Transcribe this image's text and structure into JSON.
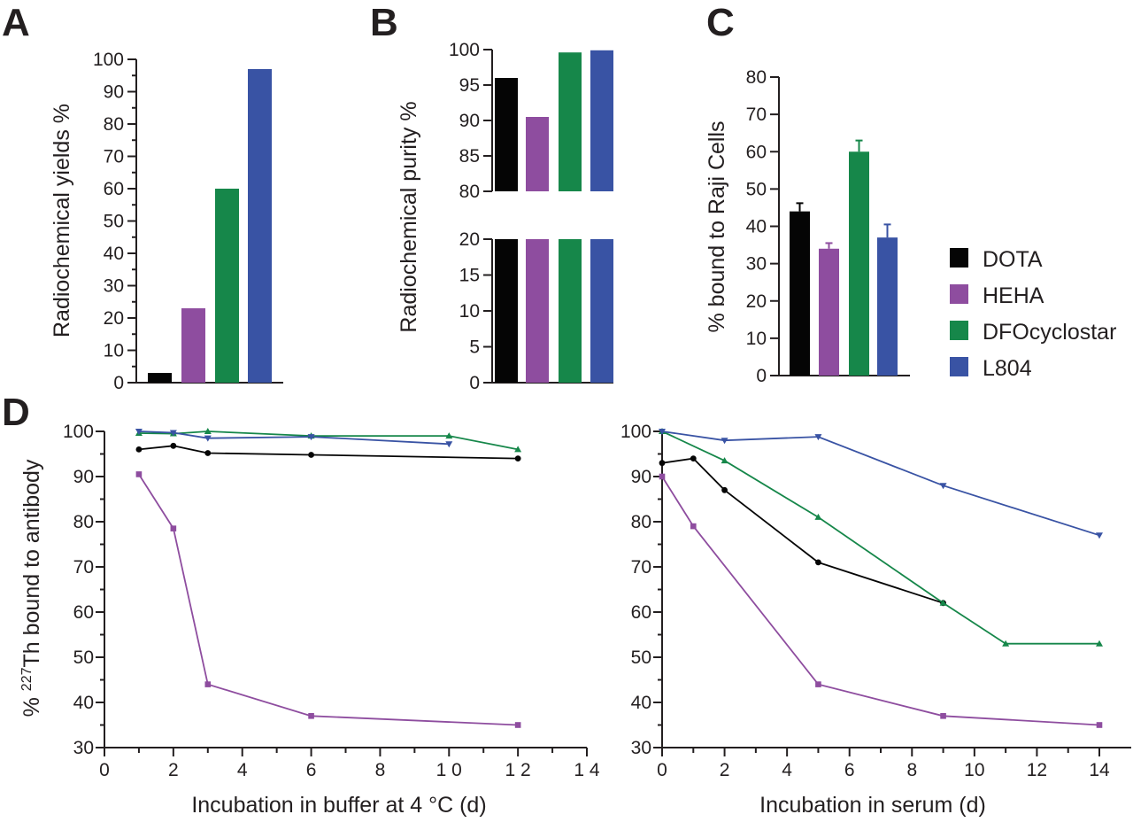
{
  "colors": {
    "DOTA": "#050505",
    "HEHA": "#8e4d9f",
    "DFOcyclostar": "#16874a",
    "L804": "#3953a4",
    "axis": "#231f20"
  },
  "legend": {
    "entries": [
      "DOTA",
      "HEHA",
      "DFOcyclostar",
      "L804"
    ]
  },
  "chart_data": [
    {
      "panel": "A",
      "type": "bar",
      "categories": [
        "DOTA",
        "HEHA",
        "DFOcyclostar",
        "L804"
      ],
      "values": [
        3,
        23,
        60,
        97
      ],
      "ylabel": "Radiochemical yields %",
      "ylim": [
        0,
        100
      ],
      "yticks": [
        "0",
        "10",
        "20",
        "30",
        "40",
        "50",
        "60",
        "70",
        "80",
        "90",
        "100"
      ]
    },
    {
      "panel": "B",
      "type": "bar",
      "broken_axis": true,
      "categories": [
        "DOTA",
        "HEHA",
        "DFOcyclostar",
        "L804"
      ],
      "values": [
        96,
        90.5,
        99.6,
        99.9
      ],
      "ylabel": "Radiochemical  purity %",
      "ylim_lower": [
        0,
        20
      ],
      "ylim_upper": [
        80,
        100
      ],
      "yticks_lower": [
        "0",
        "5",
        "10",
        "15",
        "20"
      ],
      "yticks_upper": [
        "80",
        "85",
        "90",
        "95",
        "100"
      ]
    },
    {
      "panel": "C",
      "type": "bar",
      "categories": [
        "DOTA",
        "HEHA",
        "DFOcyclostar",
        "L804"
      ],
      "values": [
        44,
        34,
        60,
        37
      ],
      "errors": [
        2.2,
        1.5,
        3,
        3.5
      ],
      "ylabel": "% bound to Raji Cells",
      "ylim": [
        0,
        80
      ],
      "yticks": [
        "0",
        "10",
        "20",
        "30",
        "40",
        "50",
        "60",
        "70",
        "80"
      ]
    },
    {
      "panel": "D",
      "type": "line",
      "xlabel": "Incubation in buffer at 4 °C (d)",
      "ylabel_prefix": "% ",
      "ylabel_sup": "227",
      "ylabel_main": "Th bound to antibody",
      "xlim": [
        0,
        14
      ],
      "ylim": [
        30,
        100
      ],
      "xticks": [
        "0",
        "2",
        "4",
        "6",
        "8",
        "1 0",
        "1 2",
        "1 4"
      ],
      "yticks": [
        "30",
        "40",
        "50",
        "60",
        "70",
        "80",
        "90",
        "100"
      ],
      "series": [
        {
          "name": "DOTA",
          "x": [
            1,
            2,
            3,
            6,
            12
          ],
          "y": [
            96,
            96.8,
            95.2,
            94.8,
            94
          ]
        },
        {
          "name": "HEHA",
          "x": [
            1,
            2,
            3,
            6,
            12
          ],
          "y": [
            90.5,
            78.5,
            44,
            37,
            35
          ]
        },
        {
          "name": "DFOcyclostar",
          "x": [
            1,
            2,
            3,
            6,
            10,
            12
          ],
          "y": [
            99.6,
            99.5,
            100,
            99,
            99,
            96
          ]
        },
        {
          "name": "L804",
          "x": [
            1,
            2,
            3,
            6,
            10
          ],
          "y": [
            100,
            99.7,
            98.5,
            98.8,
            97.2
          ]
        }
      ]
    },
    {
      "panel": "D-serum",
      "type": "line",
      "xlabel": "Incubation in serum (d)",
      "xlim": [
        0,
        15
      ],
      "ylim": [
        30,
        100
      ],
      "xticks": [
        "0",
        "2",
        "4",
        "6",
        "8",
        "10",
        "12",
        "14"
      ],
      "yticks": [
        "30",
        "40",
        "50",
        "60",
        "70",
        "80",
        "90",
        "100"
      ],
      "series": [
        {
          "name": "DOTA",
          "x": [
            0,
            1,
            2,
            5,
            9
          ],
          "y": [
            93,
            94,
            87,
            71,
            62
          ]
        },
        {
          "name": "HEHA",
          "x": [
            0,
            1,
            5,
            9,
            14
          ],
          "y": [
            90,
            79,
            44,
            37,
            35
          ]
        },
        {
          "name": "DFOcyclostar",
          "x": [
            0,
            2,
            5,
            9,
            11,
            14
          ],
          "y": [
            100,
            93.5,
            81,
            62,
            53,
            53
          ]
        },
        {
          "name": "L804",
          "x": [
            0,
            2,
            5,
            9,
            14
          ],
          "y": [
            100,
            98,
            98.8,
            88,
            77
          ]
        }
      ]
    }
  ]
}
